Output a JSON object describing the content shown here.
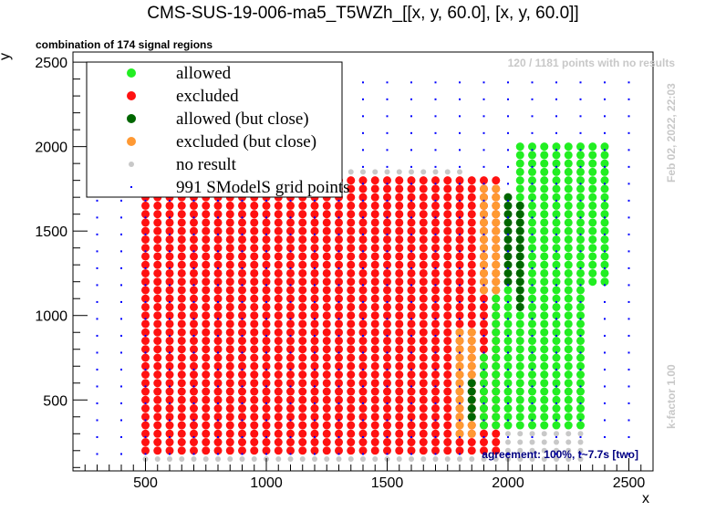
{
  "chart_data": {
    "type": "scatter",
    "title": "CMS-SUS-19-006-ma5_T5WZh_[[x, y, 60.0], [x, y, 60.0]]",
    "subtitle": "combination of 174 signal regions",
    "xlabel": "x",
    "ylabel": "y",
    "xlim": [
      200,
      2600
    ],
    "ylim": [
      80,
      2560
    ],
    "xticks": [
      500,
      1000,
      1500,
      2000,
      2500
    ],
    "yticks": [
      500,
      1000,
      1500,
      2000,
      2500
    ],
    "grid": false,
    "legend_position": "top-left",
    "notes": {
      "no_results": "120 / 1181 points with no results",
      "timestamp": "Feb 02, 2022, 22:03",
      "kfactor": "k-factor 1.00",
      "agreement": "agreement: 100%, t~7.7s [two]"
    },
    "series": [
      {
        "name": "allowed",
        "color": "#22ee22",
        "regions": [
          {
            "x_from": 2050,
            "x_to": 2300,
            "y_from": 350,
            "y_to": 2000
          },
          {
            "x_from": 2350,
            "x_to": 2400,
            "y_from": 1200,
            "y_to": 2000
          },
          {
            "x_from": 1950,
            "x_to": 2000,
            "y_from": 350,
            "y_to": 1150
          },
          {
            "x_from": 1900,
            "x_to": 1900,
            "y_from": 350,
            "y_to": 750
          }
        ]
      },
      {
        "name": "excluded",
        "color": "#ff1111",
        "regions": [
          {
            "x_from": 500,
            "x_to": 1950,
            "y_from": 200,
            "y_to": 1800
          }
        ]
      },
      {
        "name": "allowed (but close)",
        "color": "#006600",
        "regions": [
          {
            "x_from": 2000,
            "x_to": 2000,
            "y_from": 1200,
            "y_to": 1700
          },
          {
            "x_from": 2050,
            "x_to": 2050,
            "y_from": 1050,
            "y_to": 1650
          },
          {
            "x_from": 1850,
            "x_to": 1850,
            "y_from": 400,
            "y_to": 600
          }
        ]
      },
      {
        "name": "excluded (but close)",
        "color": "#ff9933",
        "regions": [
          {
            "x_from": 1900,
            "x_to": 1950,
            "y_from": 1150,
            "y_to": 1750
          },
          {
            "x_from": 1800,
            "x_to": 1850,
            "y_from": 300,
            "y_to": 900
          }
        ]
      },
      {
        "name": "no result",
        "color": "#c8c8c8",
        "regions": [
          {
            "x_from": 500,
            "x_to": 2300,
            "y_from": 150,
            "y_to": 300
          },
          {
            "x_from": 1000,
            "x_to": 1800,
            "y_from": 1350,
            "y_to": 1850
          }
        ]
      },
      {
        "name": "991 SModelS grid points",
        "color": "#0000ff",
        "regions": [
          {
            "x_from": 300,
            "x_to": 2500,
            "y_from": 180,
            "y_to": 2450
          }
        ]
      }
    ]
  }
}
